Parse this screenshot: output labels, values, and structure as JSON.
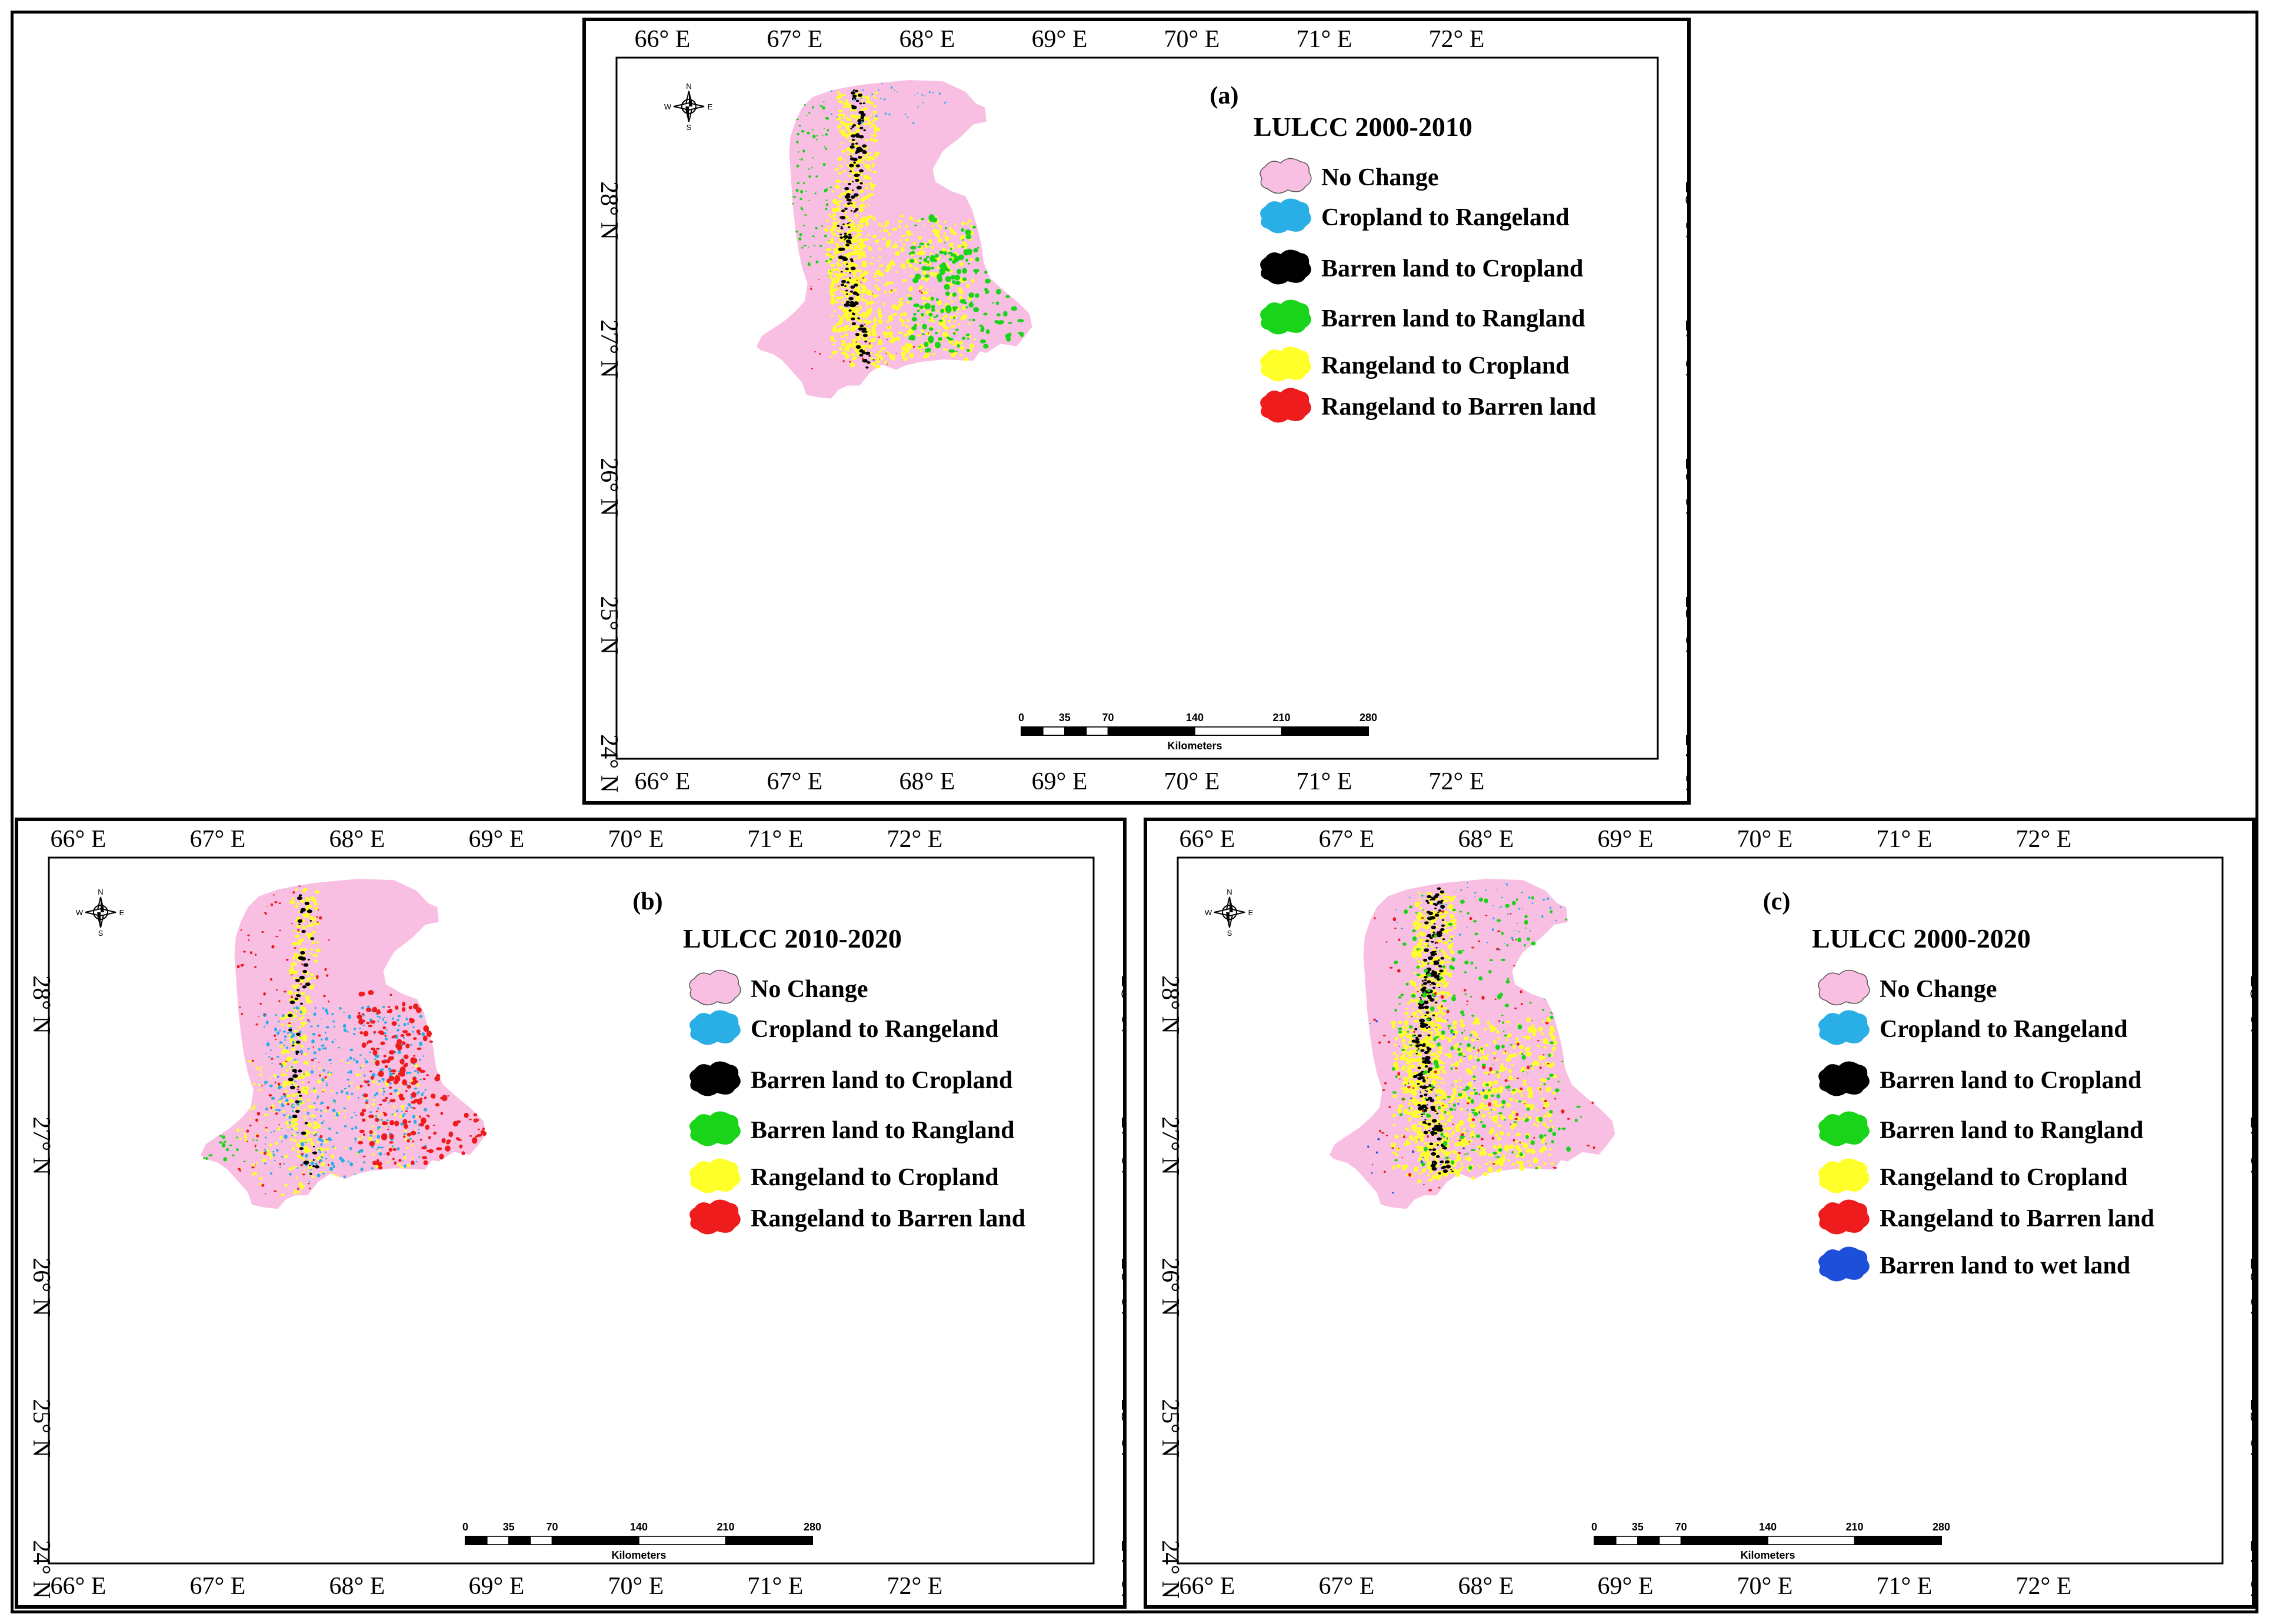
{
  "lon_labels": [
    "66° E",
    "67° E",
    "68° E",
    "69° E",
    "70° E",
    "71° E",
    "72° E"
  ],
  "lat_labels": [
    "28° N",
    "27° N",
    "26° N",
    "25° N",
    "24° N"
  ],
  "compass": {
    "n": "N",
    "s": "S",
    "e": "E",
    "w": "W"
  },
  "scale": {
    "ticks": [
      "0",
      "35",
      "70",
      "140",
      "210",
      "280"
    ],
    "unit": "Kilometers"
  },
  "colors": {
    "no_change": "#f9bfe3",
    "cropland_to_rangeland": "#29aee6",
    "barren_to_cropland": "#000000",
    "barren_to_rangeland": "#19d419",
    "rangeland_to_cropland": "#ffff2a",
    "rangeland_to_barren": "#ee1c1c",
    "barren_to_wetland": "#1e4fd8"
  },
  "panels": [
    {
      "id": "a",
      "label": "(a)",
      "title": "LULCC 2000-2010",
      "legend": [
        {
          "label": "No Change",
          "color_key": "no_change"
        },
        {
          "label": "Cropland to Rangeland",
          "color_key": "cropland_to_rangeland"
        },
        {
          "label": "Barren land to Cropland",
          "color_key": "barren_to_cropland"
        },
        {
          "label": "Barren land to Rangland",
          "color_key": "barren_to_rangeland"
        },
        {
          "label": "Rangeland to Cropland",
          "color_key": "rangeland_to_cropland"
        },
        {
          "label": "Rangeland to Barren land",
          "color_key": "rangeland_to_barren"
        }
      ]
    },
    {
      "id": "b",
      "label": "(b)",
      "title": "LULCC 2010-2020",
      "legend": [
        {
          "label": "No Change",
          "color_key": "no_change"
        },
        {
          "label": "Cropland to Rangeland",
          "color_key": "cropland_to_rangeland"
        },
        {
          "label": "Barren land to Cropland",
          "color_key": "barren_to_cropland"
        },
        {
          "label": "Barren land to Rangland",
          "color_key": "barren_to_rangeland"
        },
        {
          "label": "Rangeland to Cropland",
          "color_key": "rangeland_to_cropland"
        },
        {
          "label": "Rangeland to Barren land",
          "color_key": "rangeland_to_barren"
        }
      ]
    },
    {
      "id": "c",
      "label": "(c)",
      "title": "LULCC 2000-2020",
      "legend": [
        {
          "label": "No Change",
          "color_key": "no_change"
        },
        {
          "label": "Cropland to Rangeland",
          "color_key": "cropland_to_rangeland"
        },
        {
          "label": "Barren land to Cropland",
          "color_key": "barren_to_cropland"
        },
        {
          "label": "Barren land to Rangland",
          "color_key": "barren_to_rangeland"
        },
        {
          "label": "Rangeland to Cropland",
          "color_key": "rangeland_to_cropland"
        },
        {
          "label": "Rangeland to Barren land",
          "color_key": "rangeland_to_barren"
        },
        {
          "label": "Barren land to wet land",
          "color_key": "barren_to_wetland"
        }
      ]
    }
  ]
}
